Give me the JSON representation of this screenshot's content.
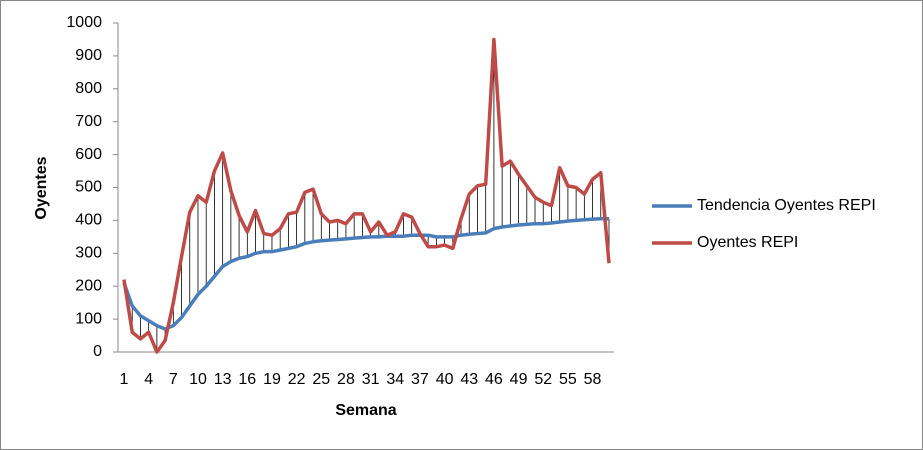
{
  "chart_data": {
    "type": "line",
    "x_label": "Semana",
    "y_label": "Oyentes",
    "categories": [
      1,
      null,
      null,
      4,
      null,
      null,
      7,
      null,
      null,
      10,
      null,
      null,
      13,
      null,
      null,
      16,
      null,
      null,
      19,
      null,
      null,
      22,
      null,
      null,
      25,
      null,
      null,
      28,
      null,
      null,
      31,
      null,
      null,
      34,
      null,
      null,
      37,
      null,
      null,
      40,
      null,
      null,
      43,
      null,
      null,
      46,
      null,
      null,
      49,
      null,
      null,
      52,
      null,
      null,
      55,
      null,
      null,
      58,
      null,
      null
    ],
    "series": [
      {
        "name": "Tendencia Oyentes REPI",
        "color": "#4a7ebb",
        "values": [
          210,
          140,
          110,
          95,
          80,
          70,
          80,
          105,
          140,
          175,
          200,
          230,
          260,
          275,
          285,
          290,
          300,
          305,
          305,
          310,
          315,
          320,
          330,
          335,
          338,
          340,
          342,
          344,
          346,
          348,
          350,
          350,
          352,
          352,
          352,
          355,
          355,
          355,
          350,
          350,
          350,
          355,
          358,
          360,
          362,
          375,
          380,
          383,
          386,
          388,
          390,
          390,
          392,
          395,
          398,
          400,
          402,
          404,
          405,
          405
        ]
      },
      {
        "name": "Oyentes REPI",
        "color": "#be4b48",
        "values": [
          220,
          60,
          40,
          60,
          0,
          35,
          150,
          290,
          425,
          475,
          455,
          550,
          605,
          490,
          415,
          365,
          430,
          360,
          355,
          375,
          420,
          425,
          485,
          495,
          420,
          395,
          400,
          390,
          420,
          420,
          365,
          395,
          355,
          365,
          420,
          410,
          360,
          320,
          320,
          325,
          315,
          405,
          480,
          505,
          510,
          950,
          565,
          580,
          540,
          505,
          470,
          455,
          445,
          560,
          505,
          500,
          480,
          525,
          545,
          270
        ]
      }
    ],
    "ylim": [
      0,
      1000
    ],
    "yticks": [
      0,
      100,
      200,
      300,
      400,
      500,
      600,
      700,
      800,
      900,
      1000
    ],
    "drop_lines": true,
    "legend": "right"
  }
}
